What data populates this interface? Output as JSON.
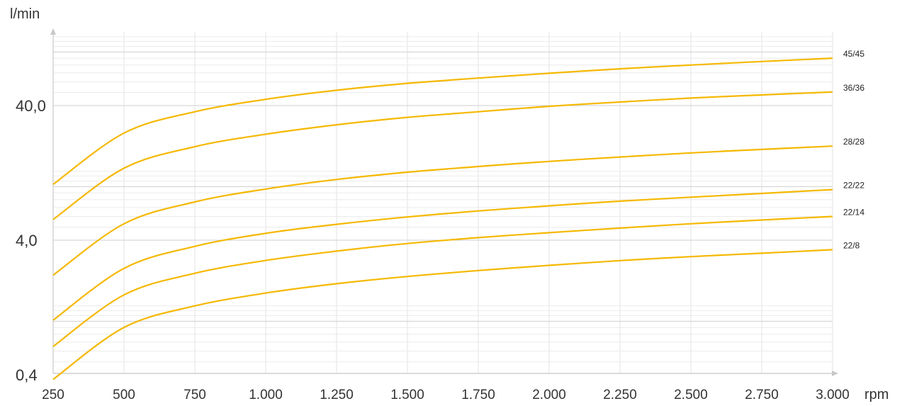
{
  "chart_data": {
    "type": "line",
    "ylabel": "l/min",
    "xlabel": "rpm",
    "x_scale": "linear",
    "y_scale": "log",
    "xlim": [
      250,
      3000
    ],
    "ylim": [
      0.4,
      120
    ],
    "grid": true,
    "legend": "labels at right end of each line",
    "x_ticks": [
      {
        "value": 250,
        "label": "250"
      },
      {
        "value": 500,
        "label": "500"
      },
      {
        "value": 750,
        "label": "750"
      },
      {
        "value": 1000,
        "label": "1.000"
      },
      {
        "value": 1250,
        "label": "1.250"
      },
      {
        "value": 1500,
        "label": "1.500"
      },
      {
        "value": 1750,
        "label": "1.750"
      },
      {
        "value": 2000,
        "label": "2.000"
      },
      {
        "value": 2250,
        "label": "2.250"
      },
      {
        "value": 2500,
        "label": "2.500"
      },
      {
        "value": 2750,
        "label": "2.750"
      },
      {
        "value": 3000,
        "label": "3.000"
      }
    ],
    "y_ticks": [
      {
        "value": 0.4,
        "label": "0,4"
      },
      {
        "value": 4,
        "label": "4,0"
      },
      {
        "value": 40,
        "label": "40,0"
      }
    ],
    "line_color": "#f5b800",
    "x": [
      250,
      500,
      750,
      1000,
      1250,
      1500,
      1750,
      2000,
      2250,
      2500,
      2750,
      3000
    ],
    "series": [
      {
        "name": "45/45",
        "values": [
          10.4,
          25.0,
          36.0,
          44.5,
          52.0,
          58.5,
          64.0,
          69.5,
          75.0,
          80.0,
          85.0,
          90.0
        ]
      },
      {
        "name": "36/36",
        "values": [
          5.7,
          13.7,
          19.8,
          24.5,
          28.8,
          32.7,
          36.0,
          39.5,
          42.5,
          45.5,
          48.0,
          50.5
        ]
      },
      {
        "name": "28/28",
        "values": [
          2.2,
          5.3,
          7.7,
          9.6,
          11.3,
          12.8,
          14.1,
          15.4,
          16.6,
          17.8,
          18.9,
          20.0
        ]
      },
      {
        "name": "22/22",
        "values": [
          1.02,
          2.47,
          3.6,
          4.5,
          5.25,
          5.95,
          6.6,
          7.2,
          7.8,
          8.35,
          8.9,
          9.5
        ]
      },
      {
        "name": "22/14",
        "values": [
          0.65,
          1.57,
          2.27,
          2.83,
          3.32,
          3.78,
          4.18,
          4.55,
          4.92,
          5.3,
          5.65,
          6.0
        ]
      },
      {
        "name": "22/8",
        "values": [
          0.37,
          0.9,
          1.3,
          1.62,
          1.9,
          2.15,
          2.38,
          2.6,
          2.82,
          3.02,
          3.2,
          3.4
        ]
      }
    ]
  }
}
